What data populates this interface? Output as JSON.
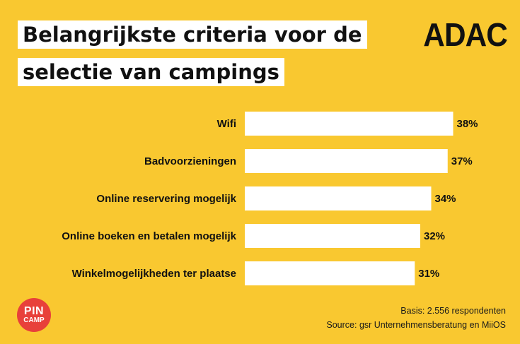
{
  "title": {
    "line1": "Belangrijkste criteria voor de",
    "line2": "selectie van campings"
  },
  "brand": "ADAC",
  "logo": {
    "line1": "PIN",
    "line2": "CAMP"
  },
  "footnotes": {
    "basis": "Basis: 2.556 respondenten",
    "source": "Source: gsr Unternehmensberatung en MiiOS"
  },
  "colors": {
    "background": "#f9c830",
    "bar": "#ffffff",
    "text": "#111111",
    "logo": "#e8403a"
  },
  "chart_data": {
    "type": "bar",
    "orientation": "horizontal",
    "categories": [
      "Wifi",
      "Badvoorzieningen",
      "Online reservering mogelijk",
      "Online boeken en betalen mogelijk",
      "Winkelmogelijkheden ter plaatse"
    ],
    "values": [
      38,
      37,
      34,
      32,
      31
    ],
    "value_labels": [
      "38%",
      "37%",
      "34%",
      "32%",
      "31%"
    ],
    "unit": "%",
    "grid": false,
    "legend": "none"
  }
}
